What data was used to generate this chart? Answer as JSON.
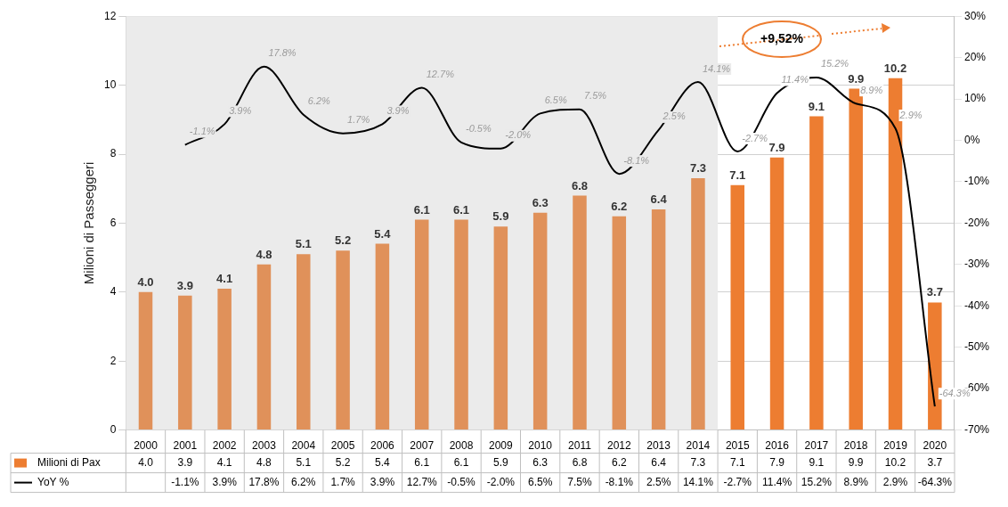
{
  "chart_data": {
    "type": "bar",
    "ylabel": "Milioni di Passeggeri",
    "categories": [
      "2000",
      "2001",
      "2002",
      "2003",
      "2004",
      "2005",
      "2006",
      "2007",
      "2008",
      "2009",
      "2010",
      "2011",
      "2012",
      "2013",
      "2014",
      "2015",
      "2016",
      "2017",
      "2018",
      "2019",
      "2020"
    ],
    "series": [
      {
        "name": "Milioni di Pax",
        "color": "#ed7d31",
        "colors": [
          "#e0915a",
          "#e0915a",
          "#e0915a",
          "#e0915a",
          "#e0915a",
          "#e0915a",
          "#e0915a",
          "#e0915a",
          "#e0915a",
          "#e0915a",
          "#e0915a",
          "#e0915a",
          "#e0915a",
          "#e0915a",
          "#e0915a",
          "#ed7d31",
          "#ed7d31",
          "#ed7d31",
          "#ed7d31",
          "#ed7d31",
          "#ed7d31"
        ],
        "values": [
          4.0,
          3.9,
          4.1,
          4.8,
          5.1,
          5.2,
          5.4,
          6.1,
          6.1,
          5.9,
          6.3,
          6.8,
          6.2,
          6.4,
          7.3,
          7.1,
          7.9,
          9.1,
          9.9,
          10.2,
          3.7
        ],
        "value_labels": [
          "4.0",
          "3.9",
          "4.1",
          "4.8",
          "5.1",
          "5.2",
          "5.4",
          "6.1",
          "6.1",
          "5.9",
          "6.3",
          "6.8",
          "6.2",
          "6.4",
          "7.3",
          "7.1",
          "7.9",
          "9.1",
          "9.9",
          "10.2",
          "3.7"
        ]
      },
      {
        "name": "YoY %",
        "type": "line",
        "axis": "y2",
        "color": "#000000",
        "values": [
          null,
          -1.1,
          3.9,
          17.8,
          6.2,
          1.7,
          3.9,
          12.7,
          -0.5,
          -2.0,
          6.5,
          7.5,
          -8.1,
          2.5,
          14.1,
          -2.7,
          11.4,
          15.2,
          8.9,
          2.9,
          -64.3
        ],
        "value_labels": [
          null,
          "-1.1%",
          "3.9%",
          "17.8%",
          "6.2%",
          "1.7%",
          "3.9%",
          "12.7%",
          "-0.5%",
          "-2.0%",
          "6.5%",
          "7.5%",
          "-8.1%",
          "2.5%",
          "14.1%",
          "-2.7%",
          "11.4%",
          "15.2%",
          "8.9%",
          "2.9%",
          "-64.3%"
        ]
      }
    ],
    "ylim": [
      0,
      12
    ],
    "yticks": [
      0,
      2,
      4,
      6,
      8,
      10,
      12
    ],
    "y2lim": [
      -70,
      30
    ],
    "y2ticks": [
      {
        "value": -70,
        "label": "-70%"
      },
      {
        "value": -60,
        "label": "-60%"
      },
      {
        "value": -50,
        "label": "-50%"
      },
      {
        "value": -40,
        "label": "-40%"
      },
      {
        "value": -30,
        "label": "-30%"
      },
      {
        "value": -20,
        "label": "-20%"
      },
      {
        "value": -10,
        "label": "-10%"
      },
      {
        "value": 0,
        "label": "0%"
      },
      {
        "value": 10,
        "label": "10%"
      },
      {
        "value": 20,
        "label": "20%"
      },
      {
        "value": 30,
        "label": "30%"
      }
    ],
    "bands": [
      {
        "axis": "x",
        "from": "2000",
        "to": "2014",
        "color": "#ebebeb"
      }
    ],
    "annotations": [
      "+9,52%"
    ],
    "grid": "y",
    "legend": "bottom",
    "marker": "none",
    "line_style": "solid"
  }
}
